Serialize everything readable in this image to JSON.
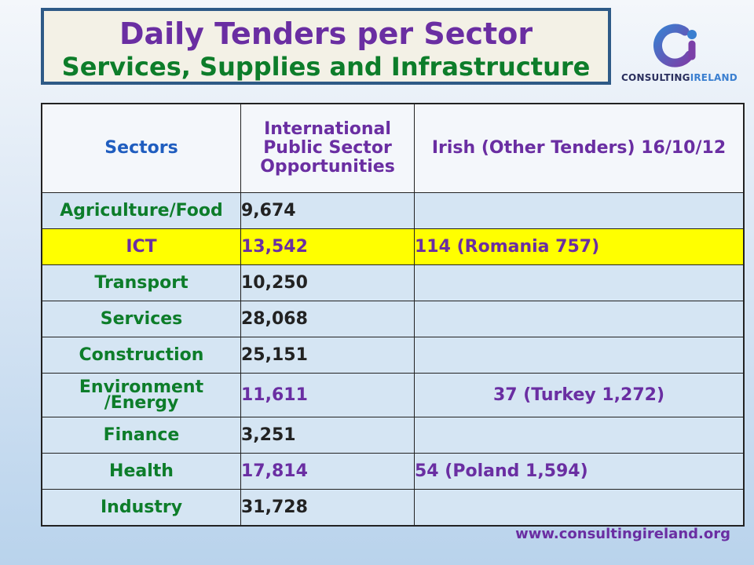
{
  "title": {
    "line1": "Daily Tenders per Sector",
    "line2": "Services, Supplies and Infrastructure"
  },
  "logo": {
    "text_part1": "CONSULTING",
    "text_part2": "IRELAND",
    "icon": "consulting-ireland-logo-icon",
    "colors": {
      "dark": "#2a2f5e",
      "blue": "#3a7fd0",
      "purple": "#7b3fa8"
    }
  },
  "table": {
    "headers": [
      "Sectors",
      "International Public Sector Opportunities",
      "Irish (Other Tenders) 16/10/12"
    ],
    "rows": [
      {
        "sector": "Agriculture/Food",
        "intl": "9,674",
        "irish": ""
      },
      {
        "sector": "ICT",
        "intl": "13,542",
        "irish": "114 (Romania 757)"
      },
      {
        "sector": "Transport",
        "intl": "10,250",
        "irish": ""
      },
      {
        "sector": "Services",
        "intl": "28,068",
        "irish": ""
      },
      {
        "sector": "Construction",
        "intl": "25,151",
        "irish": ""
      },
      {
        "sector": "Environment /Energy",
        "intl": "11,611",
        "irish": "37 (Turkey 1,272)"
      },
      {
        "sector": "Finance",
        "intl": "3,251",
        "irish": ""
      },
      {
        "sector": "Health",
        "intl": "17,814",
        "irish": "54 (Poland 1,594)"
      },
      {
        "sector": "Industry",
        "intl": "31,728",
        "irish": ""
      }
    ],
    "highlight_color": "#ffff00"
  },
  "footer": {
    "website": "www.consultingireland.org"
  },
  "colors": {
    "purple": "#6a2ea2",
    "green": "#0d7d2a",
    "title_border": "#2e5a87"
  }
}
